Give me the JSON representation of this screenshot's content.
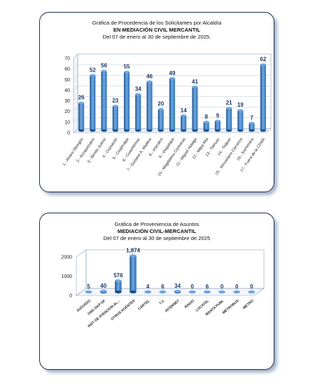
{
  "colors": {
    "bar_top": "#6fa8e0",
    "bar_body": "#2e74c0",
    "bar_dark": "#1c4f8a",
    "label": "#1f3864",
    "frame": "#1f2f4f"
  },
  "chart_data": [
    {
      "type": "bar",
      "title_lines": [
        "Gráfica de Procedencia de los Solicitantes por Alcaldía",
        "EN MEDIACIÓN CIVIL MERCANTIL",
        "Del 07 de enero al 30 de septiembre de 2025."
      ],
      "categories": [
        "1.- Alvaro Obregón",
        "2.- Azcapotzalco",
        "3.- Benito Juárez",
        "4.- Coyoacán",
        "5.- Cuajimalpa",
        "6.- Cuauhtémoc",
        "7.- Gustavo A. Madero",
        "8.- Iztacalco",
        "9.- Iztapalapa",
        "10.- Magdalena Contreras",
        "11.- Miguel Hidalgo",
        "12.- Milpa Alta",
        "13.- Tláhuac",
        "14.- Tlalpan",
        "15.- Venustiano Carranza",
        "16.- Xochimilco",
        "17.- Fuera de la CDMX"
      ],
      "values": [
        26,
        52,
        56,
        23,
        55,
        34,
        46,
        20,
        49,
        14,
        41,
        8,
        9,
        21,
        19,
        7,
        62
      ],
      "value_labels": [
        "26",
        "52",
        "56",
        "23",
        "55",
        "34",
        "46",
        "20",
        "49",
        "14",
        "41",
        "8",
        "9",
        "21",
        "19",
        "7",
        "62"
      ],
      "yticks": [
        "0",
        "10",
        "20",
        "30",
        "40",
        "50",
        "60",
        "70"
      ],
      "ylim": [
        0,
        70
      ],
      "xlabel": "",
      "ylabel": "",
      "grid": true
    },
    {
      "type": "bar",
      "title_lines": [
        "Gráfica de Proveniencia de Asuntos",
        "MEDIACIÓN CIVIL-MERCANTIL",
        "Del  07 de enero al  30 de septiembre de  2025"
      ],
      "categories": [
        "JUZGADO",
        "ONG DKP DF",
        "INST DE ATENCION AL...",
        "OTROS AGENTES",
        "CARTEL",
        "T.V.",
        "INTERNET",
        "RADIO",
        "LOCATEL",
        "MANTA PUBL",
        "METROBUS",
        "METRO"
      ],
      "values": [
        5,
        40,
        576,
        1874,
        4,
        6,
        34,
        0,
        6,
        0,
        0,
        0
      ],
      "value_labels": [
        "5",
        "40",
        "576",
        "1,874",
        "4",
        "6",
        "34",
        "0",
        "6",
        "0",
        "0",
        "0"
      ],
      "yticks": [
        "0",
        "1000",
        "2000"
      ],
      "ylim": [
        0,
        2000
      ],
      "xlabel": "",
      "ylabel": "",
      "grid": false
    }
  ]
}
